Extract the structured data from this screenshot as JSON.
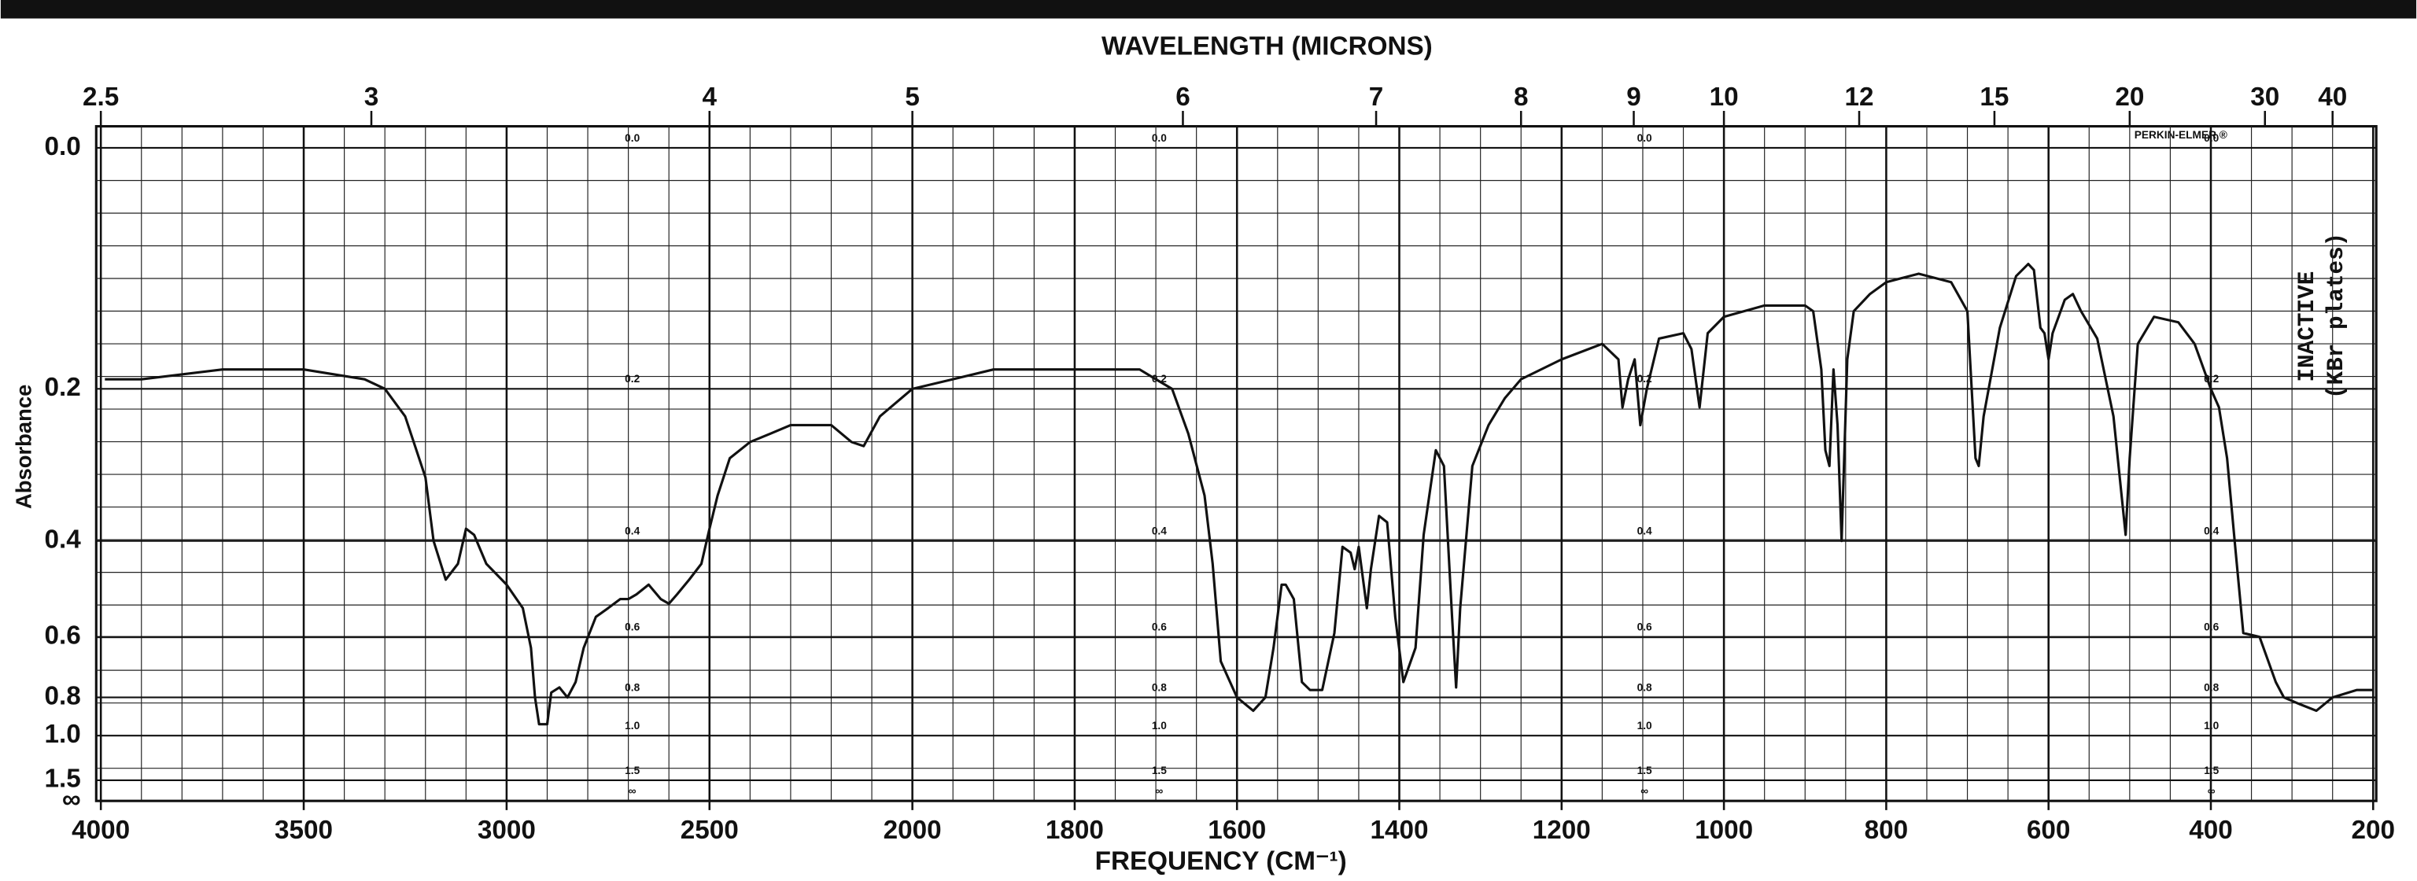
{
  "chart_data": {
    "type": "line",
    "title": "WAVELENGTH (MICRONS)",
    "x_label": "FREQUENCY (CM⁻¹)",
    "y_label": "Absorbance",
    "annotations": [
      "PERKIN-ELMER ®",
      "INACTIVE",
      "(KBr plates)"
    ],
    "color": "#111111",
    "xlim": [
      4000,
      200
    ],
    "x_scale_change": {
      "at": 2000,
      "factor": 2
    },
    "xticks": [
      4000,
      3500,
      3000,
      2500,
      2000,
      1800,
      1600,
      1400,
      1200,
      1000,
      800,
      600,
      400,
      200
    ],
    "x2ticks": [
      2.5,
      3,
      4,
      5,
      6,
      7,
      8,
      9,
      10,
      12,
      15,
      20,
      30,
      40
    ],
    "ylim": [
      0,
      null
    ],
    "y_scale": "transmittance",
    "yticks": [
      {
        "value": 0,
        "label": "0.0"
      },
      0.2,
      0.4,
      0.6,
      0.8,
      {
        "value": 1,
        "label": "1.0"
      },
      1.5,
      {
        "value": null,
        "label": "∞"
      }
    ],
    "grid": true,
    "x": [
      3990,
      3900,
      3700,
      3500,
      3350,
      3300,
      3250,
      3200,
      3180,
      3150,
      3120,
      3100,
      3080,
      3050,
      3000,
      2960,
      2940,
      2930,
      2920,
      2900,
      2890,
      2870,
      2850,
      2830,
      2810,
      2780,
      2750,
      2720,
      2700,
      2680,
      2650,
      2620,
      2600,
      2580,
      2550,
      2520,
      2500,
      2480,
      2450,
      2400,
      2350,
      2300,
      2200,
      2150,
      2120,
      2080,
      2000,
      1950,
      1900,
      1850,
      1800,
      1750,
      1720,
      1700,
      1680,
      1660,
      1640,
      1630,
      1620,
      1600,
      1580,
      1565,
      1555,
      1545,
      1540,
      1530,
      1520,
      1510,
      1495,
      1480,
      1470,
      1460,
      1455,
      1450,
      1440,
      1435,
      1425,
      1415,
      1405,
      1395,
      1380,
      1370,
      1355,
      1345,
      1335,
      1330,
      1325,
      1310,
      1290,
      1270,
      1250,
      1200,
      1150,
      1130,
      1125,
      1118,
      1110,
      1103,
      1095,
      1080,
      1050,
      1040,
      1030,
      1020,
      1000,
      950,
      900,
      890,
      880,
      875,
      870,
      865,
      860,
      855,
      848,
      840,
      820,
      800,
      760,
      720,
      700,
      690,
      686,
      680,
      660,
      640,
      625,
      618,
      610,
      605,
      600,
      595,
      580,
      570,
      560,
      540,
      520,
      505,
      500,
      490,
      470,
      440,
      420,
      400,
      390,
      380,
      370,
      360,
      340,
      320,
      310,
      290,
      270,
      250,
      220,
      200
    ],
    "values": [
      0.19,
      0.19,
      0.18,
      0.18,
      0.19,
      0.2,
      0.23,
      0.305,
      0.4,
      0.47,
      0.44,
      0.38,
      0.39,
      0.44,
      0.48,
      0.53,
      0.63,
      0.8,
      0.93,
      0.93,
      0.78,
      0.76,
      0.8,
      0.74,
      0.63,
      0.55,
      0.53,
      0.51,
      0.51,
      0.5,
      0.48,
      0.51,
      0.52,
      0.5,
      0.47,
      0.44,
      0.38,
      0.33,
      0.28,
      0.26,
      0.25,
      0.24,
      0.24,
      0.26,
      0.265,
      0.23,
      0.2,
      0.19,
      0.18,
      0.18,
      0.18,
      0.18,
      0.18,
      0.19,
      0.2,
      0.25,
      0.33,
      0.44,
      0.67,
      0.8,
      0.86,
      0.8,
      0.63,
      0.48,
      0.48,
      0.51,
      0.74,
      0.77,
      0.77,
      0.59,
      0.41,
      0.42,
      0.45,
      0.41,
      0.53,
      0.45,
      0.36,
      0.37,
      0.55,
      0.74,
      0.63,
      0.39,
      0.27,
      0.29,
      0.55,
      0.76,
      0.53,
      0.29,
      0.24,
      0.21,
      0.19,
      0.17,
      0.155,
      0.17,
      0.22,
      0.19,
      0.17,
      0.24,
      0.2,
      0.15,
      0.145,
      0.16,
      0.22,
      0.145,
      0.13,
      0.12,
      0.12,
      0.125,
      0.18,
      0.27,
      0.29,
      0.18,
      0.24,
      0.4,
      0.17,
      0.125,
      0.11,
      0.1,
      0.093,
      0.1,
      0.125,
      0.28,
      0.29,
      0.23,
      0.14,
      0.095,
      0.085,
      0.09,
      0.14,
      0.145,
      0.17,
      0.145,
      0.115,
      0.11,
      0.125,
      0.15,
      0.23,
      0.39,
      0.28,
      0.155,
      0.13,
      0.135,
      0.155,
      0.2,
      0.22,
      0.28,
      0.41,
      0.59,
      0.6,
      0.74,
      0.8,
      0.83,
      0.86,
      0.8,
      0.77,
      0.77
    ]
  }
}
